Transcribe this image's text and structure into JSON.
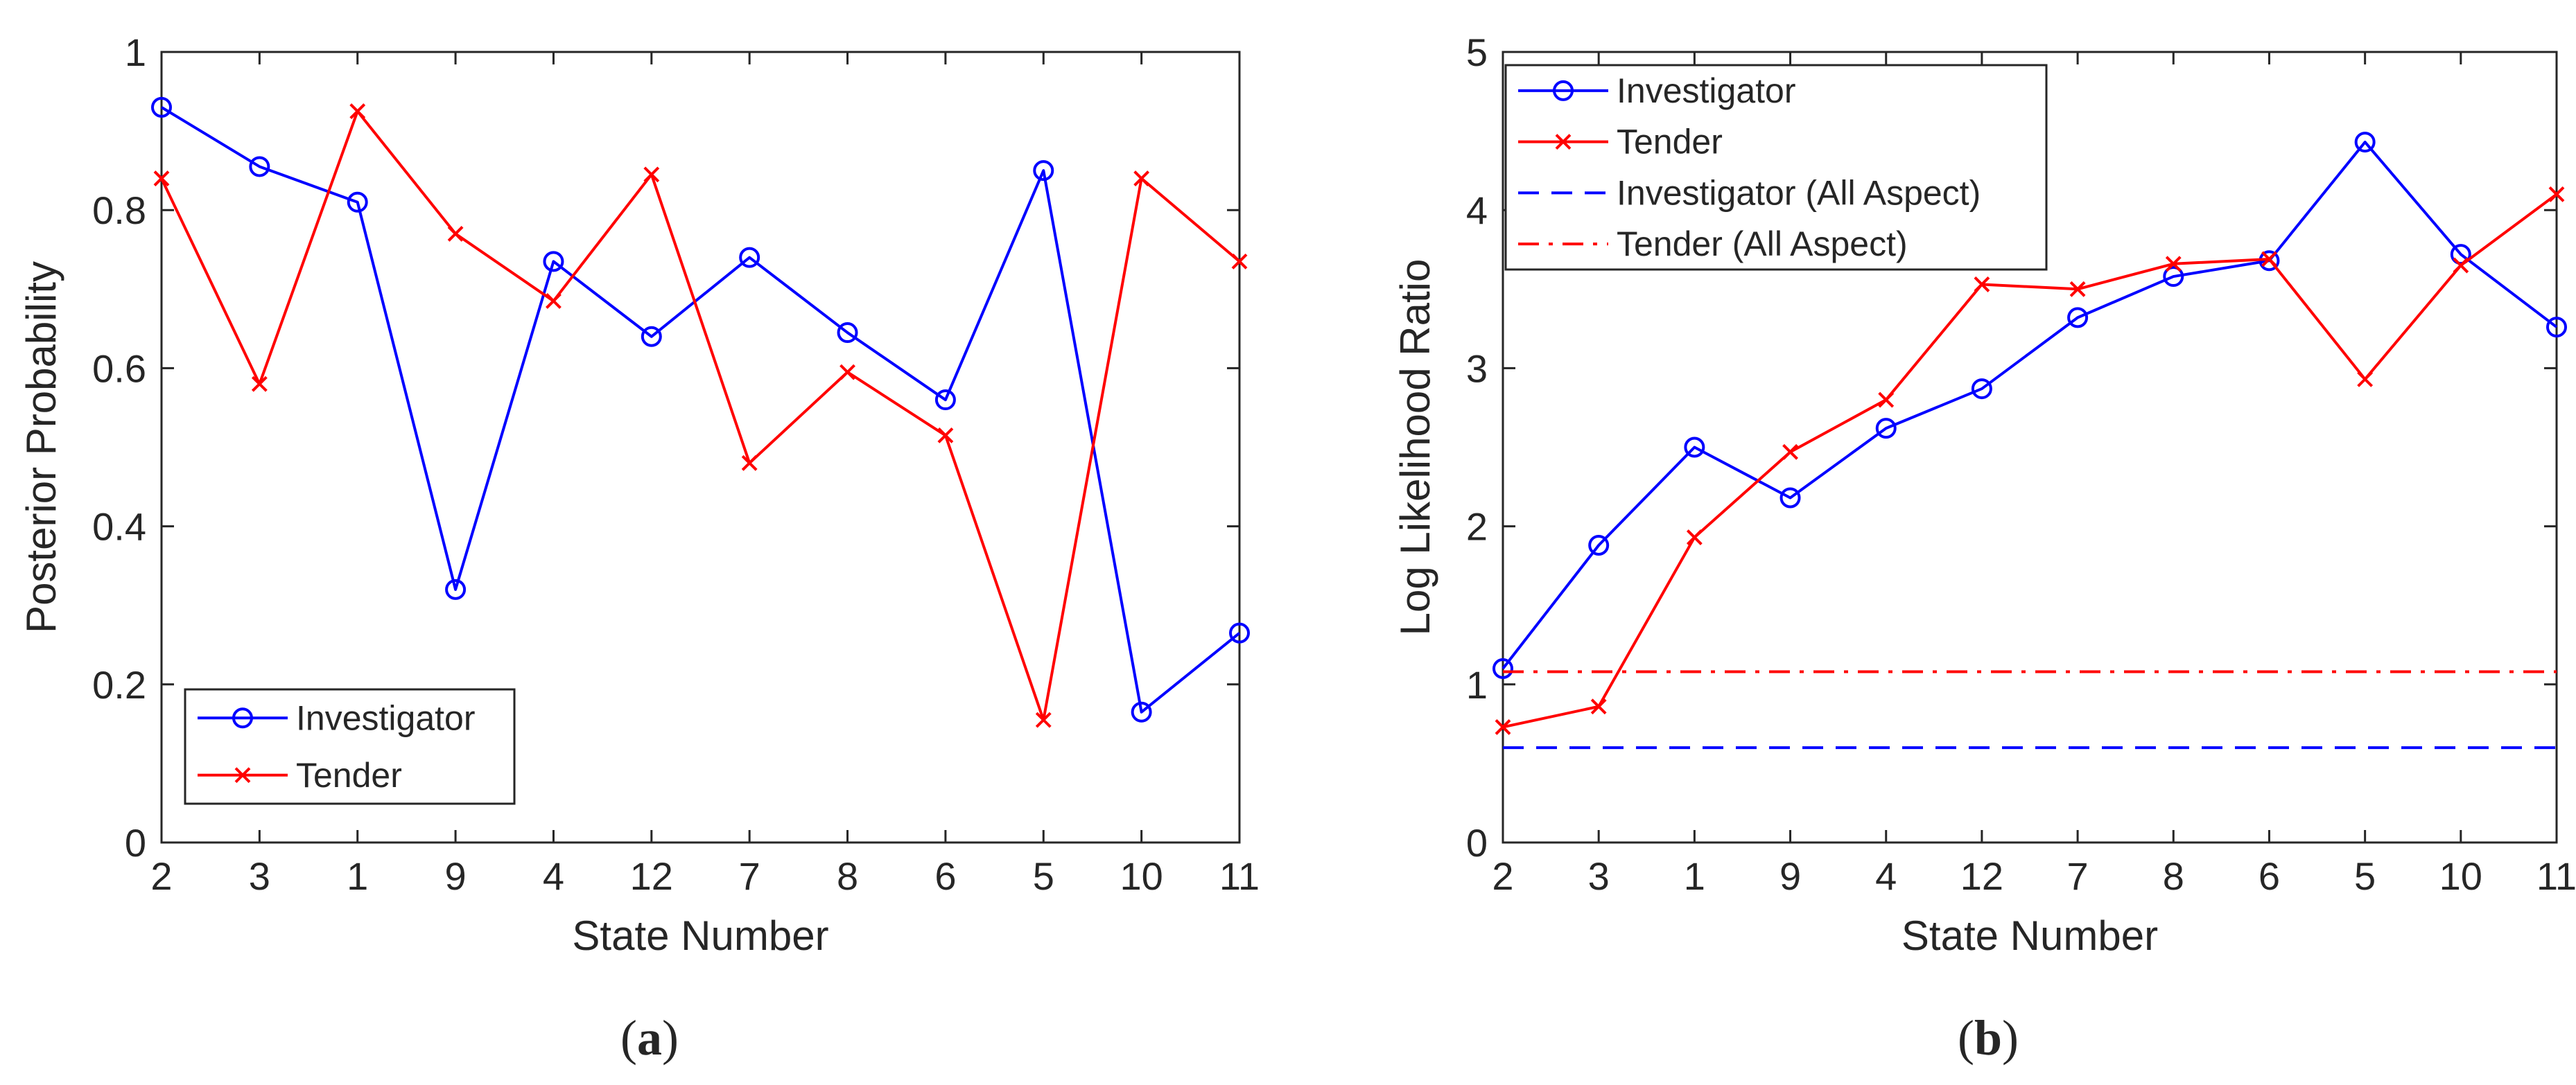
{
  "chart_data": [
    {
      "type": "line",
      "panel_label": {
        "open": "(",
        "letter": "a",
        "close": ")"
      },
      "categories": [
        "2",
        "3",
        "1",
        "9",
        "4",
        "12",
        "7",
        "8",
        "6",
        "5",
        "10",
        "11"
      ],
      "xlabel": "State Number",
      "ylabel": "Posterior Probability",
      "ylim": [
        0,
        1
      ],
      "yticks": [
        0,
        0.2,
        0.4,
        0.6,
        0.8,
        1
      ],
      "ytick_labels": [
        "0",
        "0.2",
        "0.4",
        "0.6",
        "0.8",
        "1"
      ],
      "legend_position": "bottom-left",
      "series": [
        {
          "name": "Investigator",
          "color": "#0000ff",
          "marker": "circle",
          "line_style": "solid",
          "values": [
            0.93,
            0.855,
            0.81,
            0.32,
            0.735,
            0.64,
            0.74,
            0.645,
            0.56,
            0.85,
            0.165,
            0.265
          ]
        },
        {
          "name": "Tender",
          "color": "#ff0000",
          "marker": "x",
          "line_style": "solid",
          "values": [
            0.84,
            0.58,
            0.925,
            0.77,
            0.685,
            0.845,
            0.48,
            0.595,
            0.515,
            0.155,
            0.84,
            0.735
          ]
        }
      ]
    },
    {
      "type": "line",
      "panel_label": {
        "open": "(",
        "letter": "b",
        "close": ")"
      },
      "categories": [
        "2",
        "3",
        "1",
        "9",
        "4",
        "12",
        "7",
        "8",
        "6",
        "5",
        "10",
        "11"
      ],
      "xlabel": "State Number",
      "ylabel": "Log Likelihood Ratio",
      "ylim": [
        0,
        5
      ],
      "yticks": [
        0,
        1,
        2,
        3,
        4,
        5
      ],
      "ytick_labels": [
        "0",
        "1",
        "2",
        "3",
        "4",
        "5"
      ],
      "legend_position": "top-left",
      "series": [
        {
          "name": "Investigator",
          "color": "#0000ff",
          "marker": "circle",
          "line_style": "solid",
          "values": [
            1.1,
            1.88,
            2.5,
            2.18,
            2.62,
            2.87,
            3.32,
            3.58,
            3.68,
            4.43,
            3.72,
            3.26
          ]
        },
        {
          "name": "Tender",
          "color": "#ff0000",
          "marker": "x",
          "line_style": "solid",
          "values": [
            0.73,
            0.86,
            1.93,
            2.47,
            2.8,
            3.53,
            3.5,
            3.66,
            3.69,
            2.93,
            3.65,
            4.1
          ]
        },
        {
          "name": "Investigator (All Aspect)",
          "color": "#0000ff",
          "marker": "none",
          "line_style": "dashed",
          "constant": 0.6
        },
        {
          "name": "Tender (All Aspect)",
          "color": "#ff0000",
          "marker": "none",
          "line_style": "dashdot",
          "constant": 1.08
        }
      ]
    }
  ]
}
